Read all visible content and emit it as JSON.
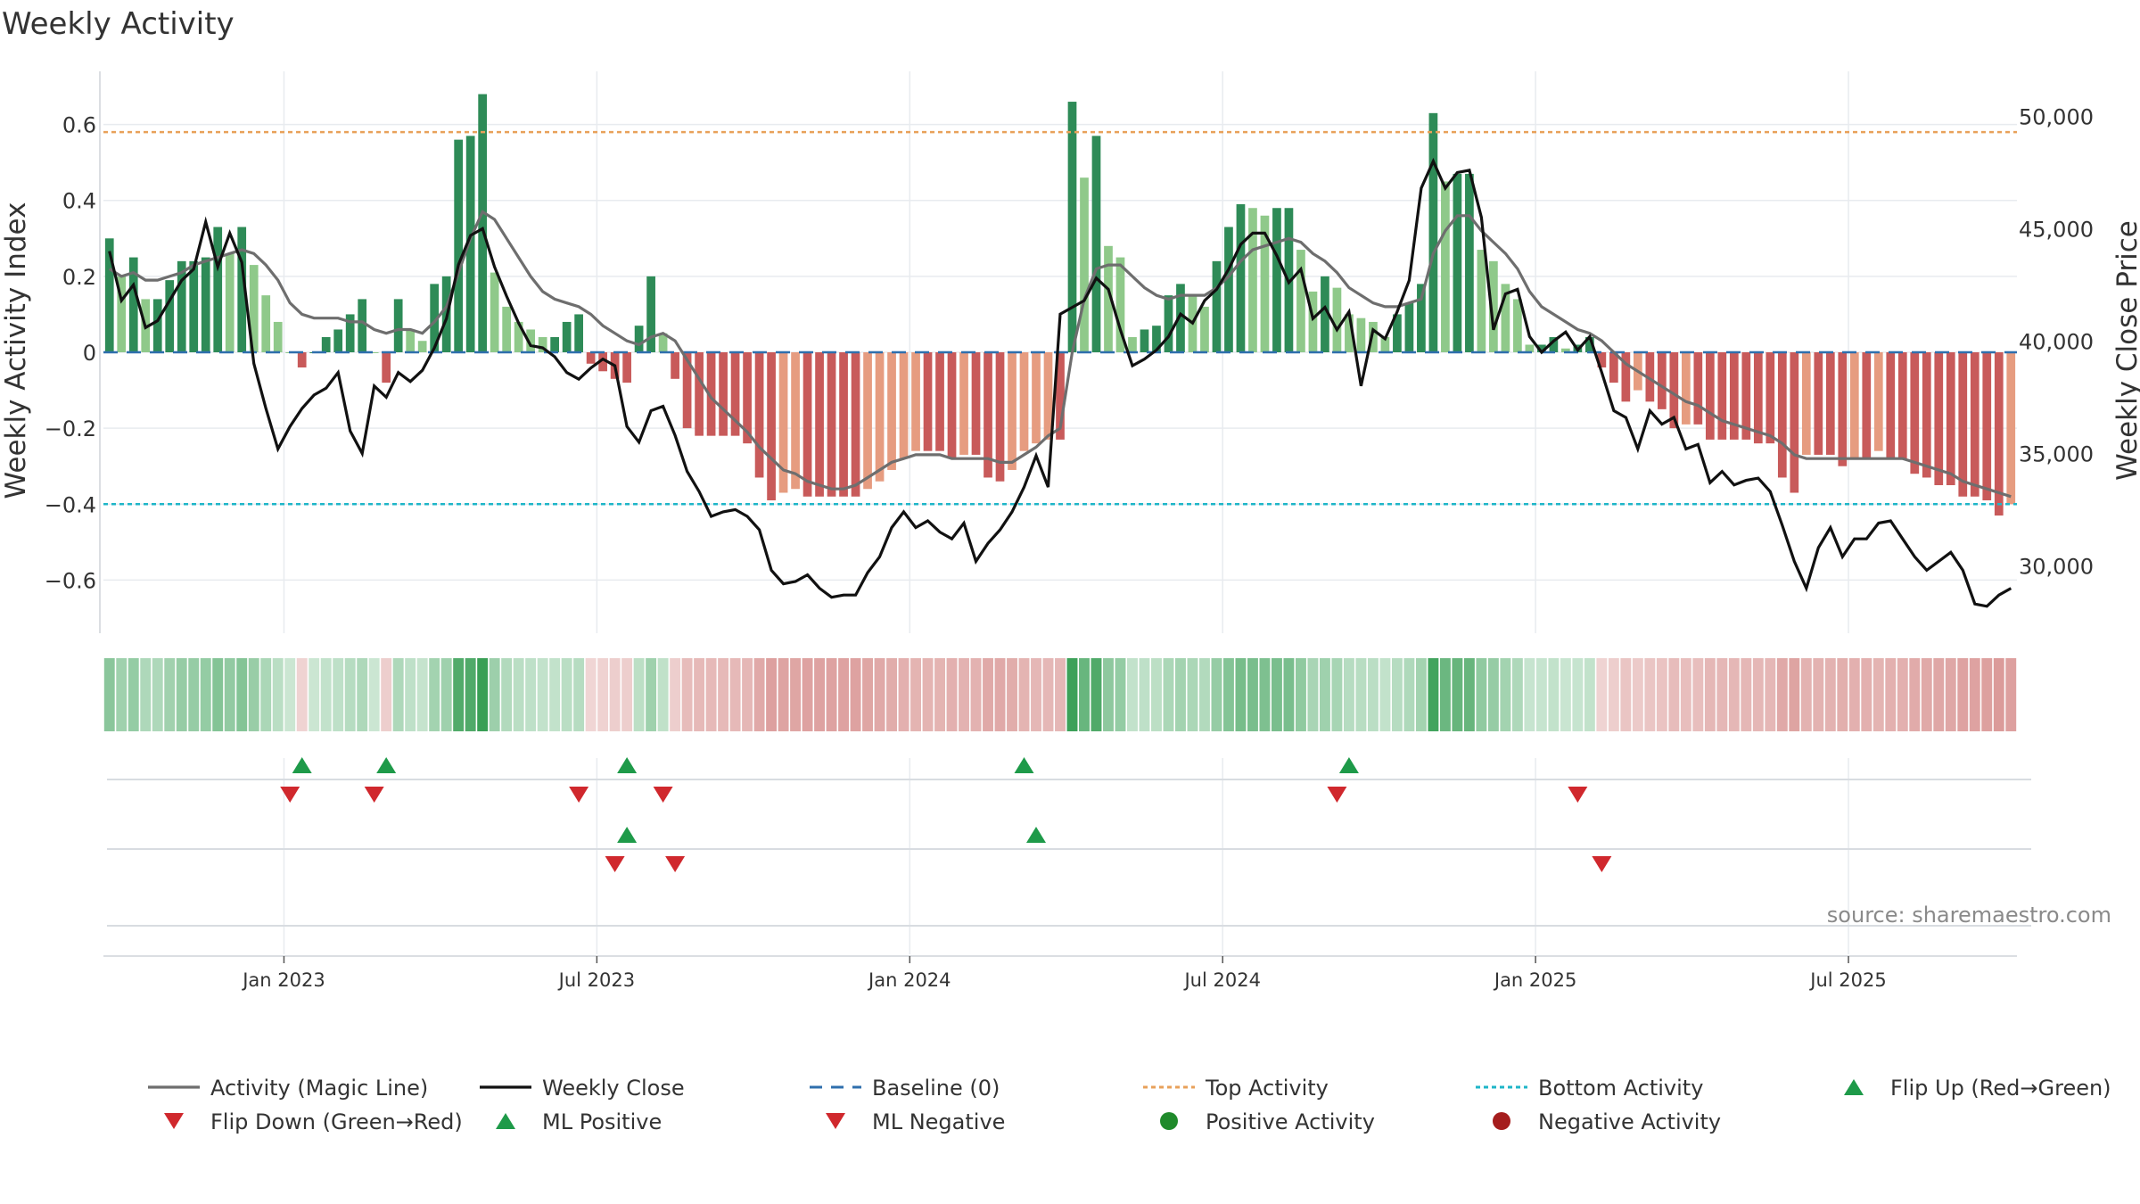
{
  "chart_data": {
    "type": "bar",
    "title": "Weekly Activity",
    "ylabel": "Weekly Activity Index",
    "y2label": "Weekly Close Price",
    "ylim": [
      -0.74,
      0.74
    ],
    "y2lim": [
      27000,
      52000
    ],
    "yticks": [
      0.6,
      0.4,
      0.2,
      0,
      -0.2,
      -0.4,
      -0.6
    ],
    "ytick_labels": [
      "0.6",
      "0.4",
      "0.2",
      "0",
      "−0.2",
      "−0.4",
      "−0.6"
    ],
    "y2ticks": [
      50000,
      45000,
      40000,
      35000,
      30000
    ],
    "y2tick_labels": [
      "50,000",
      "45,000",
      "40,000",
      "35,000",
      "30,000"
    ],
    "xtick_labels": [
      "Jan 2023",
      "Jul 2023",
      "Jan 2024",
      "Jul 2024",
      "Jan 2025",
      "Jul 2025"
    ],
    "xtick_weeks": [
      15,
      41,
      67,
      93,
      119,
      145
    ],
    "top_activity": 0.58,
    "bottom_activity": -0.4,
    "baseline": 0,
    "weekly_activity": [
      0.3,
      0.2,
      0.25,
      0.14,
      0.14,
      0.19,
      0.24,
      0.24,
      0.25,
      0.33,
      0.26,
      0.33,
      0.23,
      0.15,
      0.08,
      0.0,
      -0.04,
      0.0,
      0.04,
      0.06,
      0.1,
      0.14,
      0.0,
      -0.08,
      0.14,
      0.06,
      0.03,
      0.18,
      0.2,
      0.56,
      0.57,
      0.68,
      0.21,
      0.12,
      0.08,
      0.06,
      0.04,
      0.04,
      0.08,
      0.1,
      -0.03,
      -0.05,
      -0.07,
      -0.08,
      0.07,
      0.2,
      0.05,
      -0.07,
      -0.2,
      -0.22,
      -0.22,
      -0.22,
      -0.22,
      -0.24,
      -0.33,
      -0.39,
      -0.37,
      -0.36,
      -0.38,
      -0.38,
      -0.38,
      -0.38,
      -0.38,
      -0.36,
      -0.34,
      -0.31,
      -0.28,
      -0.26,
      -0.26,
      -0.26,
      -0.28,
      -0.27,
      -0.27,
      -0.33,
      -0.34,
      -0.31,
      -0.26,
      -0.24,
      -0.23,
      -0.23,
      0.66,
      0.46,
      0.57,
      0.28,
      0.25,
      0.04,
      0.06,
      0.07,
      0.15,
      0.18,
      0.15,
      0.12,
      0.24,
      0.33,
      0.39,
      0.38,
      0.36,
      0.38,
      0.38,
      0.27,
      0.16,
      0.2,
      0.17,
      0.1,
      0.09,
      0.08,
      0.04,
      0.1,
      0.13,
      0.18,
      0.63,
      0.45,
      0.47,
      0.47,
      0.27,
      0.24,
      0.18,
      0.14,
      0.02,
      0.02,
      0.04,
      0.01,
      0.02,
      0.04,
      -0.04,
      -0.08,
      -0.13,
      -0.1,
      -0.13,
      -0.15,
      -0.2,
      -0.19,
      -0.19,
      -0.23,
      -0.23,
      -0.23,
      -0.23,
      -0.24,
      -0.24,
      -0.33,
      -0.37,
      -0.27,
      -0.27,
      -0.27,
      -0.3,
      -0.28,
      -0.28,
      -0.26,
      -0.28,
      -0.28,
      -0.32,
      -0.33,
      -0.35,
      -0.35,
      -0.38,
      -0.38,
      -0.39,
      -0.43,
      -0.4
    ],
    "weekly_close": [
      44000,
      41800,
      42500,
      40600,
      40900,
      41800,
      42700,
      43200,
      45300,
      43300,
      44800,
      43500,
      39000,
      37000,
      35200,
      36200,
      37000,
      37600,
      37900,
      38600,
      36000,
      35000,
      38000,
      37500,
      38600,
      38200,
      38700,
      39700,
      41000,
      43400,
      44700,
      45000,
      43300,
      42000,
      40800,
      39800,
      39700,
      39300,
      38600,
      38300,
      38800,
      39200,
      38900,
      36200,
      35500,
      36900,
      37100,
      35800,
      34200,
      33300,
      32200,
      32400,
      32500,
      32200,
      31600,
      29800,
      29200,
      29300,
      29600,
      29000,
      28600,
      28700,
      28700,
      29700,
      30400,
      31700,
      32400,
      31700,
      32000,
      31500,
      31200,
      31900,
      30200,
      31000,
      31600,
      32400,
      33500,
      34900,
      33500,
      41200,
      41500,
      41800,
      42800,
      42300,
      40500,
      38900,
      39200,
      39600,
      40200,
      41200,
      40800,
      41800,
      42300,
      43200,
      44300,
      44800,
      44800,
      43800,
      42600,
      43200,
      41000,
      41500,
      40500,
      41300,
      38000,
      40500,
      40100,
      41300,
      42700,
      46800,
      48000,
      46800,
      47500,
      47600,
      45500,
      40500,
      42100,
      42300,
      40200,
      39500,
      40000,
      40400,
      39600,
      40200,
      38600,
      36900,
      36600,
      35200,
      36900,
      36300,
      36600,
      35200,
      35400,
      33700,
      34200,
      33600,
      33800,
      33900,
      33300,
      31800,
      30200,
      29000,
      30800,
      31700,
      30400,
      31200,
      31200,
      31900,
      32000,
      31200,
      30400,
      29800,
      30200,
      30600,
      29800,
      28300,
      28200,
      28700,
      29000
    ],
    "magic_line": [
      0.22,
      0.2,
      0.21,
      0.19,
      0.19,
      0.2,
      0.21,
      0.23,
      0.24,
      0.25,
      0.26,
      0.27,
      0.26,
      0.23,
      0.19,
      0.13,
      0.1,
      0.09,
      0.09,
      0.09,
      0.08,
      0.08,
      0.06,
      0.05,
      0.06,
      0.06,
      0.05,
      0.08,
      0.12,
      0.21,
      0.3,
      0.37,
      0.35,
      0.3,
      0.25,
      0.2,
      0.16,
      0.14,
      0.13,
      0.12,
      0.1,
      0.07,
      0.05,
      0.03,
      0.02,
      0.04,
      0.05,
      0.03,
      -0.02,
      -0.07,
      -0.12,
      -0.15,
      -0.18,
      -0.21,
      -0.25,
      -0.28,
      -0.31,
      -0.32,
      -0.34,
      -0.35,
      -0.36,
      -0.36,
      -0.35,
      -0.33,
      -0.31,
      -0.29,
      -0.28,
      -0.27,
      -0.27,
      -0.27,
      -0.28,
      -0.28,
      -0.28,
      -0.28,
      -0.29,
      -0.29,
      -0.27,
      -0.25,
      -0.22,
      -0.2,
      0.0,
      0.14,
      0.22,
      0.23,
      0.23,
      0.2,
      0.17,
      0.15,
      0.14,
      0.15,
      0.15,
      0.15,
      0.17,
      0.2,
      0.24,
      0.27,
      0.28,
      0.29,
      0.3,
      0.29,
      0.26,
      0.24,
      0.21,
      0.17,
      0.15,
      0.13,
      0.12,
      0.12,
      0.13,
      0.14,
      0.26,
      0.32,
      0.36,
      0.36,
      0.32,
      0.29,
      0.26,
      0.22,
      0.16,
      0.12,
      0.1,
      0.08,
      0.06,
      0.05,
      0.03,
      0.0,
      -0.03,
      -0.05,
      -0.07,
      -0.09,
      -0.11,
      -0.13,
      -0.14,
      -0.16,
      -0.18,
      -0.19,
      -0.2,
      -0.21,
      -0.22,
      -0.24,
      -0.27,
      -0.28,
      -0.28,
      -0.28,
      -0.28,
      -0.28,
      -0.28,
      -0.28,
      -0.28,
      -0.28,
      -0.29,
      -0.3,
      -0.31,
      -0.32,
      -0.34,
      -0.35,
      -0.36,
      -0.37,
      -0.38
    ],
    "flip_up_weeks": [
      16,
      23,
      43,
      76,
      103
    ],
    "flip_down_weeks": [
      15,
      22,
      39,
      46,
      102,
      122
    ],
    "ml_positive_weeks": [
      43,
      77
    ],
    "ml_negative_weeks": [
      42,
      47,
      124
    ],
    "colors": {
      "bar_green_dark": "#2e8b57",
      "bar_green_light": "#8fc98a",
      "bar_red_dark": "#c85a5a",
      "bar_red_light": "#e69c80",
      "magic_line": "#6e6e6e",
      "weekly_close": "#111111",
      "baseline": "#2f6fad",
      "top_activity": "#e8a15a",
      "bottom_activity": "#1fb6c8",
      "flip_up": "#1e9a49",
      "flip_down": "#d0282d",
      "positive_activity": "#1f8a2b",
      "negative_activity": "#a51d1d",
      "grid": "#e8ebef"
    },
    "legend": [
      {
        "label": "Activity (Magic Line)",
        "kind": "line",
        "color": "#6e6e6e"
      },
      {
        "label": "Weekly Close",
        "kind": "line",
        "color": "#111111"
      },
      {
        "label": "Baseline (0)",
        "kind": "dashed",
        "color": "#2f6fad"
      },
      {
        "label": "Top Activity",
        "kind": "dotted",
        "color": "#e8a15a"
      },
      {
        "label": "Bottom Activity",
        "kind": "dotted",
        "color": "#1fb6c8"
      },
      {
        "label": "Flip Up (Red→Green)",
        "kind": "tri-up",
        "color": "#1e9a49"
      },
      {
        "label": "Flip Down (Green→Red)",
        "kind": "tri-down",
        "color": "#d0282d"
      },
      {
        "label": "ML Positive",
        "kind": "tri-up",
        "color": "#1e9a49"
      },
      {
        "label": "ML Negative",
        "kind": "tri-down",
        "color": "#d0282d"
      },
      {
        "label": "Positive Activity",
        "kind": "dot",
        "color": "#1f8a2b"
      },
      {
        "label": "Negative Activity",
        "kind": "dot",
        "color": "#a51d1d"
      }
    ],
    "source": "source: sharemaestro.com"
  }
}
